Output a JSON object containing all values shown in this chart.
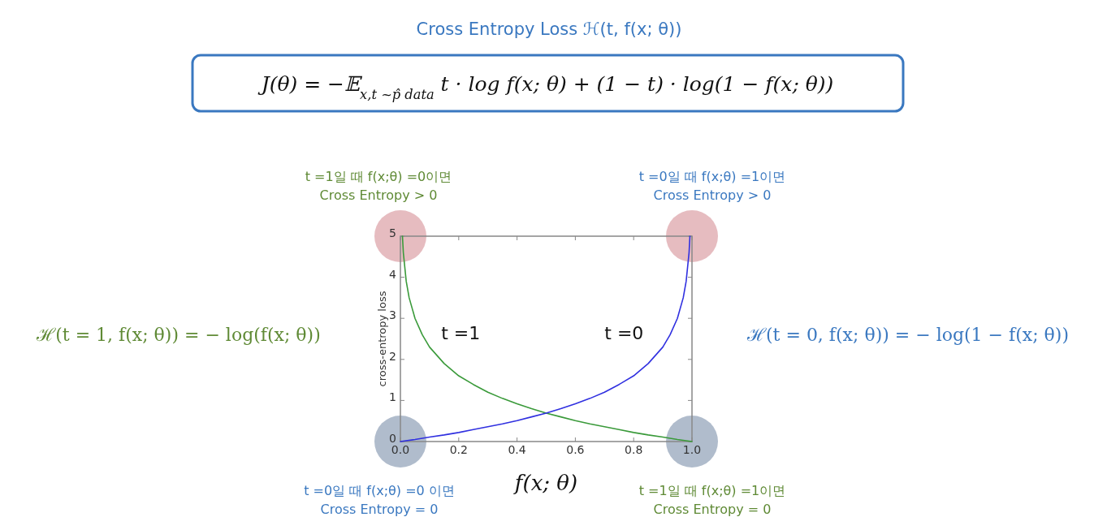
{
  "chart_data": {
    "type": "line",
    "title": "Cross Entropy Loss ℋ(t, f(x; θ))",
    "subtitle": "J(θ) = −𝔼$_{x,t ~p̂ data}$ t · log f(x; θ) + (1 − t) · log(1 − f(x; θ))",
    "xlabel": "f(x; θ)",
    "ylabel": "cross-entropy loss",
    "xlim": [
      0,
      1
    ],
    "ylim": [
      0,
      5
    ],
    "xticks": [
      {
        "value": 0,
        "label": "0.0"
      },
      0.2,
      0.4,
      0.6,
      0.8,
      {
        "value": 1,
        "label": "1.0"
      }
    ],
    "yticks": [
      0,
      1,
      2,
      3,
      4,
      5
    ],
    "series": [
      {
        "type": "scatter",
        "marker": "circle",
        "color": "#e6bcc0",
        "x": [
          0,
          1
        ],
        "values": [
          5,
          5
        ]
      },
      {
        "type": "scatter",
        "marker": "circle",
        "color": "#b0bccc",
        "x": [
          0,
          1
        ],
        "values": [
          0,
          0
        ]
      },
      {
        "name": "t =1",
        "color": "#3a9a3a",
        "x": [
          0.007,
          0.01,
          0.02,
          0.03,
          0.05,
          0.075,
          0.1,
          0.15,
          0.2,
          0.25,
          0.3,
          0.35,
          0.4,
          0.45,
          0.5,
          0.55,
          0.6,
          0.65,
          0.7,
          0.75,
          0.8,
          0.85,
          0.9,
          0.95,
          1.0
        ],
        "values": [
          5.0,
          4.6,
          3.9,
          3.5,
          3.0,
          2.6,
          2.3,
          1.9,
          1.6,
          1.39,
          1.2,
          1.05,
          0.92,
          0.8,
          0.69,
          0.6,
          0.51,
          0.43,
          0.36,
          0.29,
          0.22,
          0.16,
          0.11,
          0.05,
          0
        ]
      },
      {
        "name": "t =0",
        "color": "#3030e0",
        "x": [
          0,
          0.05,
          0.1,
          0.15,
          0.2,
          0.25,
          0.3,
          0.35,
          0.4,
          0.45,
          0.5,
          0.55,
          0.6,
          0.65,
          0.7,
          0.75,
          0.8,
          0.85,
          0.9,
          0.925,
          0.95,
          0.97,
          0.98,
          0.99,
          0.993
        ],
        "values": [
          0,
          0.05,
          0.11,
          0.16,
          0.22,
          0.29,
          0.36,
          0.43,
          0.51,
          0.6,
          0.69,
          0.8,
          0.92,
          1.05,
          1.2,
          1.39,
          1.6,
          1.9,
          2.3,
          2.6,
          3.0,
          3.5,
          3.9,
          4.6,
          5.0
        ]
      }
    ],
    "annotations": [
      "t =1일 때 f(x;θ) =0이면\nCross Entropy > 0",
      "t =0일 때 f(x;θ) =1이면\nCross Entropy > 0",
      "t =0일 때 f(x;θ) =0 이면\nCross Entropy = 0",
      "t =1일 때 f(x;θ) =1이면\nCross Entropy = 0",
      "ℋ(t = 1, f(x; θ)) = − log(f(x; θ))",
      "ℋ(t = 0, f(x; θ)) = − log(1 − f(x; θ))"
    ]
  }
}
